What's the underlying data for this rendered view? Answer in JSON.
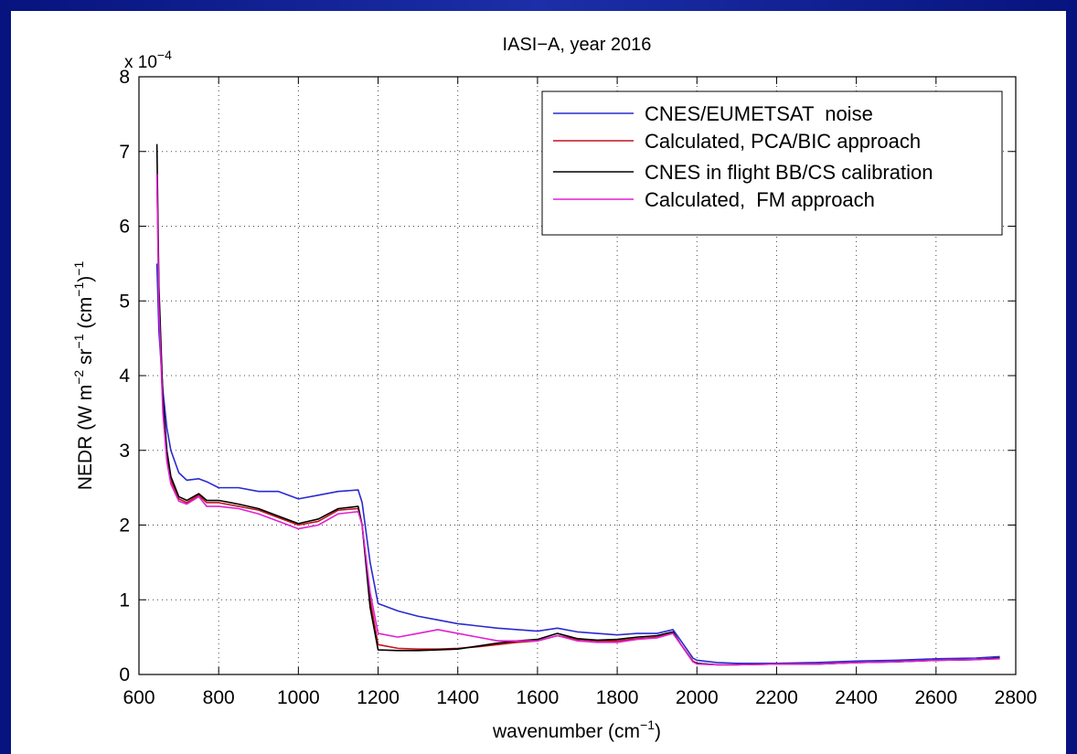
{
  "chart_data": {
    "type": "line",
    "title": "IASI−A, year 2016",
    "xlabel_parts": [
      "wavenumber (cm",
      "−1",
      ")"
    ],
    "ylabel_parts": [
      "NEDR  (W m",
      "−2",
      " sr",
      "−1",
      " (cm",
      "−1",
      ")",
      "−1"
    ],
    "y_multiplier_parts": [
      "x 10",
      "−4"
    ],
    "x": [
      645,
      650,
      660,
      670,
      680,
      700,
      720,
      750,
      770,
      800,
      850,
      900,
      950,
      1000,
      1050,
      1100,
      1150,
      1160,
      1180,
      1200,
      1250,
      1300,
      1350,
      1400,
      1450,
      1500,
      1550,
      1600,
      1650,
      1700,
      1750,
      1800,
      1850,
      1900,
      1940,
      1960,
      1990,
      2000,
      2050,
      2100,
      2200,
      2300,
      2400,
      2500,
      2600,
      2700,
      2760
    ],
    "series": [
      {
        "name": "CNES/EUMETSAT  noise",
        "color": "#2a2ad0",
        "values": [
          5.5,
          4.6,
          3.8,
          3.3,
          3.0,
          2.7,
          2.6,
          2.62,
          2.58,
          2.5,
          2.5,
          2.45,
          2.45,
          2.35,
          2.4,
          2.45,
          2.47,
          2.3,
          1.5,
          0.95,
          0.85,
          0.78,
          0.73,
          0.68,
          0.65,
          0.62,
          0.6,
          0.58,
          0.62,
          0.57,
          0.55,
          0.53,
          0.55,
          0.55,
          0.6,
          0.45,
          0.22,
          0.19,
          0.16,
          0.15,
          0.15,
          0.16,
          0.18,
          0.19,
          0.21,
          0.22,
          0.24
        ]
      },
      {
        "name": "Calculated, PCA/BIC approach",
        "color": "#c0141e",
        "values": [
          6.7,
          5.0,
          3.6,
          2.9,
          2.6,
          2.35,
          2.3,
          2.4,
          2.3,
          2.3,
          2.25,
          2.2,
          2.1,
          2.0,
          2.05,
          2.2,
          2.22,
          2.0,
          1.0,
          0.4,
          0.35,
          0.34,
          0.34,
          0.35,
          0.37,
          0.4,
          0.43,
          0.45,
          0.52,
          0.47,
          0.45,
          0.45,
          0.48,
          0.5,
          0.55,
          0.4,
          0.18,
          0.15,
          0.13,
          0.13,
          0.14,
          0.14,
          0.16,
          0.17,
          0.19,
          0.2,
          0.22
        ]
      },
      {
        "name": "CNES in flight BB/CS calibration",
        "color": "#000000",
        "values": [
          7.1,
          5.2,
          3.7,
          3.0,
          2.65,
          2.38,
          2.33,
          2.42,
          2.33,
          2.33,
          2.28,
          2.22,
          2.12,
          2.02,
          2.08,
          2.22,
          2.25,
          2.0,
          0.9,
          0.33,
          0.32,
          0.32,
          0.33,
          0.34,
          0.38,
          0.42,
          0.45,
          0.47,
          0.55,
          0.48,
          0.46,
          0.47,
          0.5,
          0.52,
          0.57,
          0.4,
          0.17,
          0.15,
          0.13,
          0.13,
          0.14,
          0.14,
          0.16,
          0.17,
          0.19,
          0.2,
          0.22
        ]
      },
      {
        "name": "Calculated,  FM approach",
        "color": "#e020d0",
        "values": [
          6.7,
          4.9,
          3.5,
          2.85,
          2.55,
          2.32,
          2.28,
          2.38,
          2.25,
          2.25,
          2.22,
          2.15,
          2.05,
          1.95,
          2.0,
          2.15,
          2.18,
          2.0,
          1.1,
          0.55,
          0.5,
          0.55,
          0.6,
          0.55,
          0.5,
          0.45,
          0.45,
          0.45,
          0.52,
          0.45,
          0.43,
          0.43,
          0.47,
          0.49,
          0.55,
          0.4,
          0.17,
          0.14,
          0.13,
          0.13,
          0.14,
          0.14,
          0.16,
          0.17,
          0.19,
          0.2,
          0.21
        ]
      }
    ],
    "xlim": [
      600,
      2800
    ],
    "xticks": [
      600,
      800,
      1000,
      1200,
      1400,
      1600,
      1800,
      2000,
      2200,
      2400,
      2600,
      2800
    ],
    "ylim": [
      0,
      8
    ],
    "yticks": [
      0,
      1,
      2,
      3,
      4,
      5,
      6,
      7,
      8
    ],
    "grid": true,
    "legend": "upper right"
  }
}
